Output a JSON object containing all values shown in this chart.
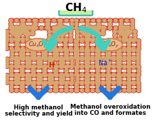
{
  "bg_color": "#ffffff",
  "ch4_box_color": "#c8f0a0",
  "ch4_box_edge": "#30b0b0",
  "arrow_color": "#40d0c0",
  "blue_arrow_color": "#2277dd",
  "cu_ox_color": "#f0b890",
  "cu_ox_edge": "#d08040",
  "h_plus_color": "#cc2200",
  "na_plus_color": "#0044cc",
  "label_left_line1": "High methanol",
  "label_left_line2": "selectivity and yield",
  "label_right_line1": "Methanol overoxidation",
  "label_right_line2": "into CO and formates",
  "ring_red": "#dd2020",
  "ring_tan": "#d4a870",
  "fig_width": 2.25,
  "fig_height": 1.89
}
